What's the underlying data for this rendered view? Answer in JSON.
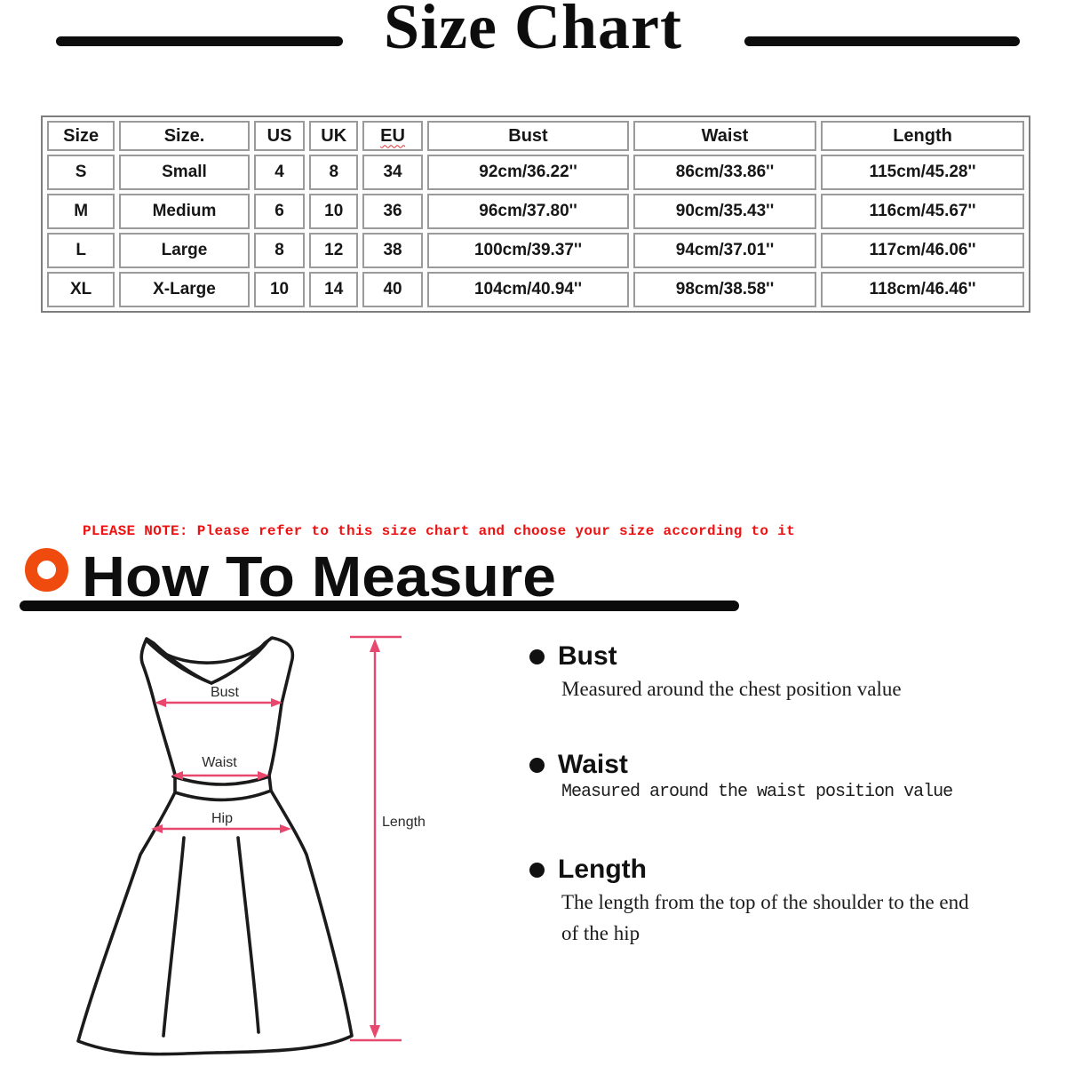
{
  "title": "Size Chart",
  "table": {
    "headers": [
      "Size",
      "Size.",
      "US",
      "UK",
      "EU",
      "Bust",
      "Waist",
      "Length"
    ],
    "rows": [
      [
        "S",
        "Small",
        "4",
        "8",
        "34",
        "92cm/36.22''",
        "86cm/33.86''",
        "115cm/45.28''"
      ],
      [
        "M",
        "Medium",
        "6",
        "10",
        "36",
        "96cm/37.80''",
        "90cm/35.43''",
        "116cm/45.67''"
      ],
      [
        "L",
        "Large",
        "8",
        "12",
        "38",
        "100cm/39.37''",
        "94cm/37.01''",
        "117cm/46.06''"
      ],
      [
        "XL",
        "X-Large",
        "10",
        "14",
        "40",
        "104cm/40.94''",
        "98cm/38.58''",
        "118cm/46.46''"
      ]
    ]
  },
  "note": "PLEASE NOTE: Please refer to this size chart and choose your size according to it",
  "how_to_measure": {
    "heading": "How To Measure",
    "items": [
      {
        "label": "Bust",
        "description": "Measured around the chest position value"
      },
      {
        "label": "Waist",
        "description": "Measured around the waist position value"
      },
      {
        "label": "Length",
        "description": "The length from the top of the shoulder to the end of the hip"
      }
    ]
  },
  "diagram": {
    "labels": {
      "bust": "Bust",
      "waist": "Waist",
      "hip": "Hip",
      "length": "Length"
    }
  },
  "colors": {
    "measure_pink": "#e8486e",
    "ring_orange": "#f04b0f",
    "note_red": "#ee1111",
    "ink_black": "#0d0d0d",
    "table_border_gray": "#9a9a9a"
  }
}
